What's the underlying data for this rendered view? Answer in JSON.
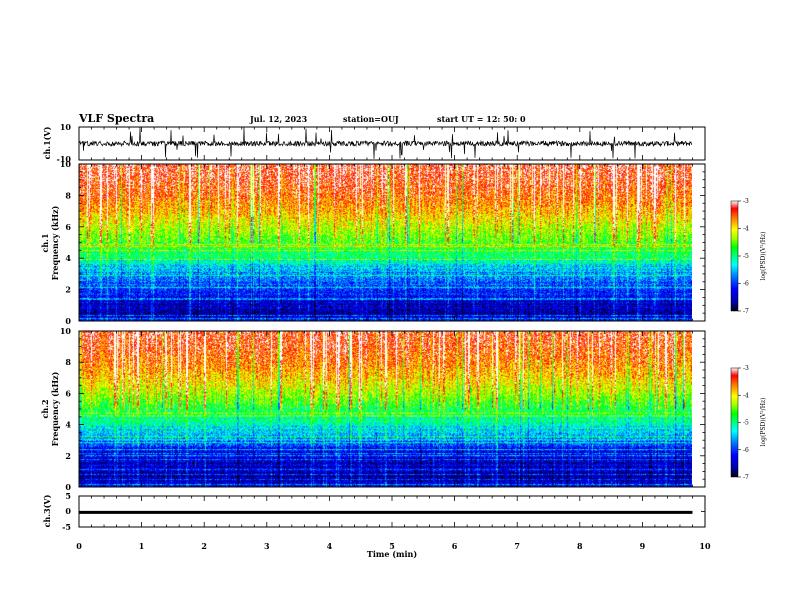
{
  "header": {
    "title": "VLF Spectra",
    "date": "Jul. 12, 2023",
    "station": "station=OUJ",
    "start_ut": "start UT =  12: 50: 0"
  },
  "colors": {
    "colormap": [
      "#000000",
      "#0000a8",
      "#0000ff",
      "#0080ff",
      "#00ffff",
      "#00ff80",
      "#00ff00",
      "#a0ff00",
      "#ffff00",
      "#ff8000",
      "#ff0000",
      "#ffffff"
    ]
  },
  "chart_data": [
    {
      "type": "line",
      "panel": "ch1-waveform",
      "ylabel": "ch.1(V)",
      "ylim": [
        -10,
        10
      ],
      "y_ticks": [
        "10",
        "-10"
      ],
      "xlim": [
        0,
        10
      ],
      "x_extent_min": 9.8,
      "description_values": {
        "baseline_v": 0,
        "typical_amplitude_v": 3,
        "max_spike_v": 10
      }
    },
    {
      "type": "heatmap",
      "panel": "ch1-spectrogram",
      "ylabel": "ch.1\nFrequency (kHz)",
      "ylim": [
        0,
        10
      ],
      "y_ticks": [
        "0",
        "2",
        "4",
        "6",
        "8",
        "10"
      ],
      "xlim": [
        0,
        10
      ],
      "x_extent_min": 9.8,
      "colorbar": {
        "label": "log(PSD)(V²/Hz)",
        "range": [
          -7,
          -3
        ],
        "ticks": [
          "-3",
          "-4",
          "-5",
          "-6",
          "-7"
        ]
      },
      "profile": {
        "freq_khz": [
          0,
          0.5,
          1,
          2,
          3,
          3.5,
          4,
          5,
          6,
          7,
          8,
          9,
          10
        ],
        "log_psd": [
          -6.2,
          -6.6,
          -6.5,
          -6.0,
          -5.7,
          -5.4,
          -5.0,
          -4.6,
          -4.2,
          -3.8,
          -3.5,
          -3.3,
          -3.2
        ]
      }
    },
    {
      "type": "heatmap",
      "panel": "ch2-spectrogram",
      "ylabel": "ch.2\nFrequency (kHz)",
      "ylim": [
        0,
        10
      ],
      "y_ticks": [
        "0",
        "2",
        "4",
        "6",
        "8",
        "10"
      ],
      "xlim": [
        0,
        10
      ],
      "x_extent_min": 9.8,
      "colorbar": {
        "label": "log(PSD)(V²/Hz)",
        "range": [
          -7,
          -3
        ],
        "ticks": [
          "-3",
          "-4",
          "-5",
          "-6",
          "-7"
        ]
      },
      "profile": {
        "freq_khz": [
          0,
          0.5,
          1,
          2,
          3,
          3.5,
          4,
          5,
          6,
          7,
          8,
          9,
          10
        ],
        "log_psd": [
          -6.3,
          -6.6,
          -6.5,
          -6.4,
          -5.8,
          -5.5,
          -5.2,
          -4.8,
          -4.3,
          -3.9,
          -3.6,
          -3.4,
          -3.3
        ]
      }
    },
    {
      "type": "line",
      "panel": "ch3-waveform",
      "ylabel": "ch.3(V)",
      "ylim": [
        -5,
        5
      ],
      "y_ticks": [
        "5",
        "0",
        "-5"
      ],
      "xlim": [
        0,
        10
      ],
      "x_extent_min": 9.8,
      "description_values": {
        "baseline_v": -0.3
      }
    }
  ],
  "xaxis": {
    "label": "Time (min)",
    "ticks": [
      "0",
      "1",
      "2",
      "3",
      "4",
      "5",
      "6",
      "7",
      "8",
      "9",
      "10"
    ]
  }
}
